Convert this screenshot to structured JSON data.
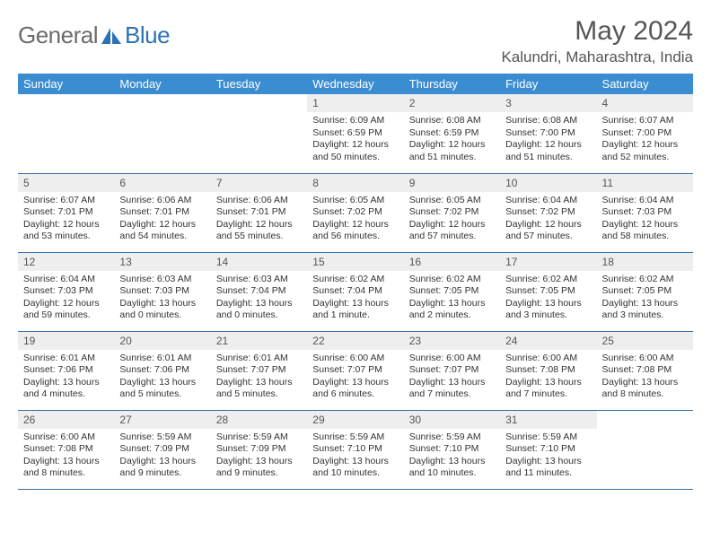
{
  "brand": {
    "part1": "General",
    "part2": "Blue"
  },
  "title": "May 2024",
  "location": "Kalundri, Maharashtra, India",
  "colors": {
    "header_bg": "#3b8dd1",
    "header_text": "#ffffff",
    "daynum_bg": "#eeeeee",
    "border": "#3b6fa0",
    "brand_gray": "#6b6b6b",
    "brand_blue": "#2a72b5"
  },
  "weekdays": [
    "Sunday",
    "Monday",
    "Tuesday",
    "Wednesday",
    "Thursday",
    "Friday",
    "Saturday"
  ],
  "weeks": [
    [
      null,
      null,
      null,
      {
        "n": "1",
        "sr": "Sunrise: 6:09 AM",
        "ss": "Sunset: 6:59 PM",
        "d1": "Daylight: 12 hours",
        "d2": "and 50 minutes."
      },
      {
        "n": "2",
        "sr": "Sunrise: 6:08 AM",
        "ss": "Sunset: 6:59 PM",
        "d1": "Daylight: 12 hours",
        "d2": "and 51 minutes."
      },
      {
        "n": "3",
        "sr": "Sunrise: 6:08 AM",
        "ss": "Sunset: 7:00 PM",
        "d1": "Daylight: 12 hours",
        "d2": "and 51 minutes."
      },
      {
        "n": "4",
        "sr": "Sunrise: 6:07 AM",
        "ss": "Sunset: 7:00 PM",
        "d1": "Daylight: 12 hours",
        "d2": "and 52 minutes."
      }
    ],
    [
      {
        "n": "5",
        "sr": "Sunrise: 6:07 AM",
        "ss": "Sunset: 7:01 PM",
        "d1": "Daylight: 12 hours",
        "d2": "and 53 minutes."
      },
      {
        "n": "6",
        "sr": "Sunrise: 6:06 AM",
        "ss": "Sunset: 7:01 PM",
        "d1": "Daylight: 12 hours",
        "d2": "and 54 minutes."
      },
      {
        "n": "7",
        "sr": "Sunrise: 6:06 AM",
        "ss": "Sunset: 7:01 PM",
        "d1": "Daylight: 12 hours",
        "d2": "and 55 minutes."
      },
      {
        "n": "8",
        "sr": "Sunrise: 6:05 AM",
        "ss": "Sunset: 7:02 PM",
        "d1": "Daylight: 12 hours",
        "d2": "and 56 minutes."
      },
      {
        "n": "9",
        "sr": "Sunrise: 6:05 AM",
        "ss": "Sunset: 7:02 PM",
        "d1": "Daylight: 12 hours",
        "d2": "and 57 minutes."
      },
      {
        "n": "10",
        "sr": "Sunrise: 6:04 AM",
        "ss": "Sunset: 7:02 PM",
        "d1": "Daylight: 12 hours",
        "d2": "and 57 minutes."
      },
      {
        "n": "11",
        "sr": "Sunrise: 6:04 AM",
        "ss": "Sunset: 7:03 PM",
        "d1": "Daylight: 12 hours",
        "d2": "and 58 minutes."
      }
    ],
    [
      {
        "n": "12",
        "sr": "Sunrise: 6:04 AM",
        "ss": "Sunset: 7:03 PM",
        "d1": "Daylight: 12 hours",
        "d2": "and 59 minutes."
      },
      {
        "n": "13",
        "sr": "Sunrise: 6:03 AM",
        "ss": "Sunset: 7:03 PM",
        "d1": "Daylight: 13 hours",
        "d2": "and 0 minutes."
      },
      {
        "n": "14",
        "sr": "Sunrise: 6:03 AM",
        "ss": "Sunset: 7:04 PM",
        "d1": "Daylight: 13 hours",
        "d2": "and 0 minutes."
      },
      {
        "n": "15",
        "sr": "Sunrise: 6:02 AM",
        "ss": "Sunset: 7:04 PM",
        "d1": "Daylight: 13 hours",
        "d2": "and 1 minute."
      },
      {
        "n": "16",
        "sr": "Sunrise: 6:02 AM",
        "ss": "Sunset: 7:05 PM",
        "d1": "Daylight: 13 hours",
        "d2": "and 2 minutes."
      },
      {
        "n": "17",
        "sr": "Sunrise: 6:02 AM",
        "ss": "Sunset: 7:05 PM",
        "d1": "Daylight: 13 hours",
        "d2": "and 3 minutes."
      },
      {
        "n": "18",
        "sr": "Sunrise: 6:02 AM",
        "ss": "Sunset: 7:05 PM",
        "d1": "Daylight: 13 hours",
        "d2": "and 3 minutes."
      }
    ],
    [
      {
        "n": "19",
        "sr": "Sunrise: 6:01 AM",
        "ss": "Sunset: 7:06 PM",
        "d1": "Daylight: 13 hours",
        "d2": "and 4 minutes."
      },
      {
        "n": "20",
        "sr": "Sunrise: 6:01 AM",
        "ss": "Sunset: 7:06 PM",
        "d1": "Daylight: 13 hours",
        "d2": "and 5 minutes."
      },
      {
        "n": "21",
        "sr": "Sunrise: 6:01 AM",
        "ss": "Sunset: 7:07 PM",
        "d1": "Daylight: 13 hours",
        "d2": "and 5 minutes."
      },
      {
        "n": "22",
        "sr": "Sunrise: 6:00 AM",
        "ss": "Sunset: 7:07 PM",
        "d1": "Daylight: 13 hours",
        "d2": "and 6 minutes."
      },
      {
        "n": "23",
        "sr": "Sunrise: 6:00 AM",
        "ss": "Sunset: 7:07 PM",
        "d1": "Daylight: 13 hours",
        "d2": "and 7 minutes."
      },
      {
        "n": "24",
        "sr": "Sunrise: 6:00 AM",
        "ss": "Sunset: 7:08 PM",
        "d1": "Daylight: 13 hours",
        "d2": "and 7 minutes."
      },
      {
        "n": "25",
        "sr": "Sunrise: 6:00 AM",
        "ss": "Sunset: 7:08 PM",
        "d1": "Daylight: 13 hours",
        "d2": "and 8 minutes."
      }
    ],
    [
      {
        "n": "26",
        "sr": "Sunrise: 6:00 AM",
        "ss": "Sunset: 7:08 PM",
        "d1": "Daylight: 13 hours",
        "d2": "and 8 minutes."
      },
      {
        "n": "27",
        "sr": "Sunrise: 5:59 AM",
        "ss": "Sunset: 7:09 PM",
        "d1": "Daylight: 13 hours",
        "d2": "and 9 minutes."
      },
      {
        "n": "28",
        "sr": "Sunrise: 5:59 AM",
        "ss": "Sunset: 7:09 PM",
        "d1": "Daylight: 13 hours",
        "d2": "and 9 minutes."
      },
      {
        "n": "29",
        "sr": "Sunrise: 5:59 AM",
        "ss": "Sunset: 7:10 PM",
        "d1": "Daylight: 13 hours",
        "d2": "and 10 minutes."
      },
      {
        "n": "30",
        "sr": "Sunrise: 5:59 AM",
        "ss": "Sunset: 7:10 PM",
        "d1": "Daylight: 13 hours",
        "d2": "and 10 minutes."
      },
      {
        "n": "31",
        "sr": "Sunrise: 5:59 AM",
        "ss": "Sunset: 7:10 PM",
        "d1": "Daylight: 13 hours",
        "d2": "and 11 minutes."
      },
      null
    ]
  ]
}
